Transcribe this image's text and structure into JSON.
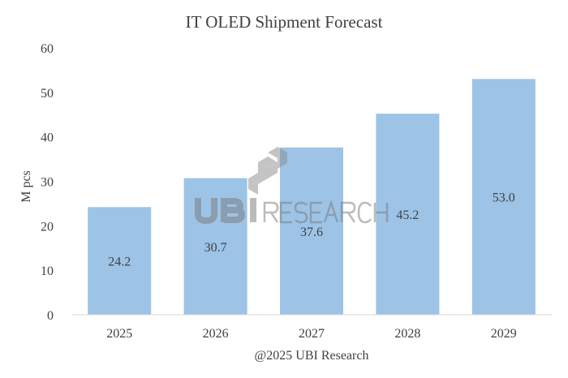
{
  "chart_data": {
    "type": "bar",
    "title": "IT OLED Shipment Forecast",
    "xlabel": "@2025 UBI Research",
    "ylabel": "M pcs",
    "categories": [
      "2025",
      "2026",
      "2027",
      "2028",
      "2029"
    ],
    "values": [
      24.2,
      30.7,
      37.6,
      45.2,
      53.0
    ],
    "data_labels": [
      "24.2",
      "30.7",
      "37.6",
      "45.2",
      "53.0"
    ],
    "ylim": [
      0,
      60
    ],
    "yticks": [
      "0",
      "10",
      "20",
      "30",
      "40",
      "50",
      "60"
    ],
    "grid": false,
    "legend": "none",
    "bar_color": "#9dc3e6",
    "watermark": "UBI RESEARCH"
  }
}
